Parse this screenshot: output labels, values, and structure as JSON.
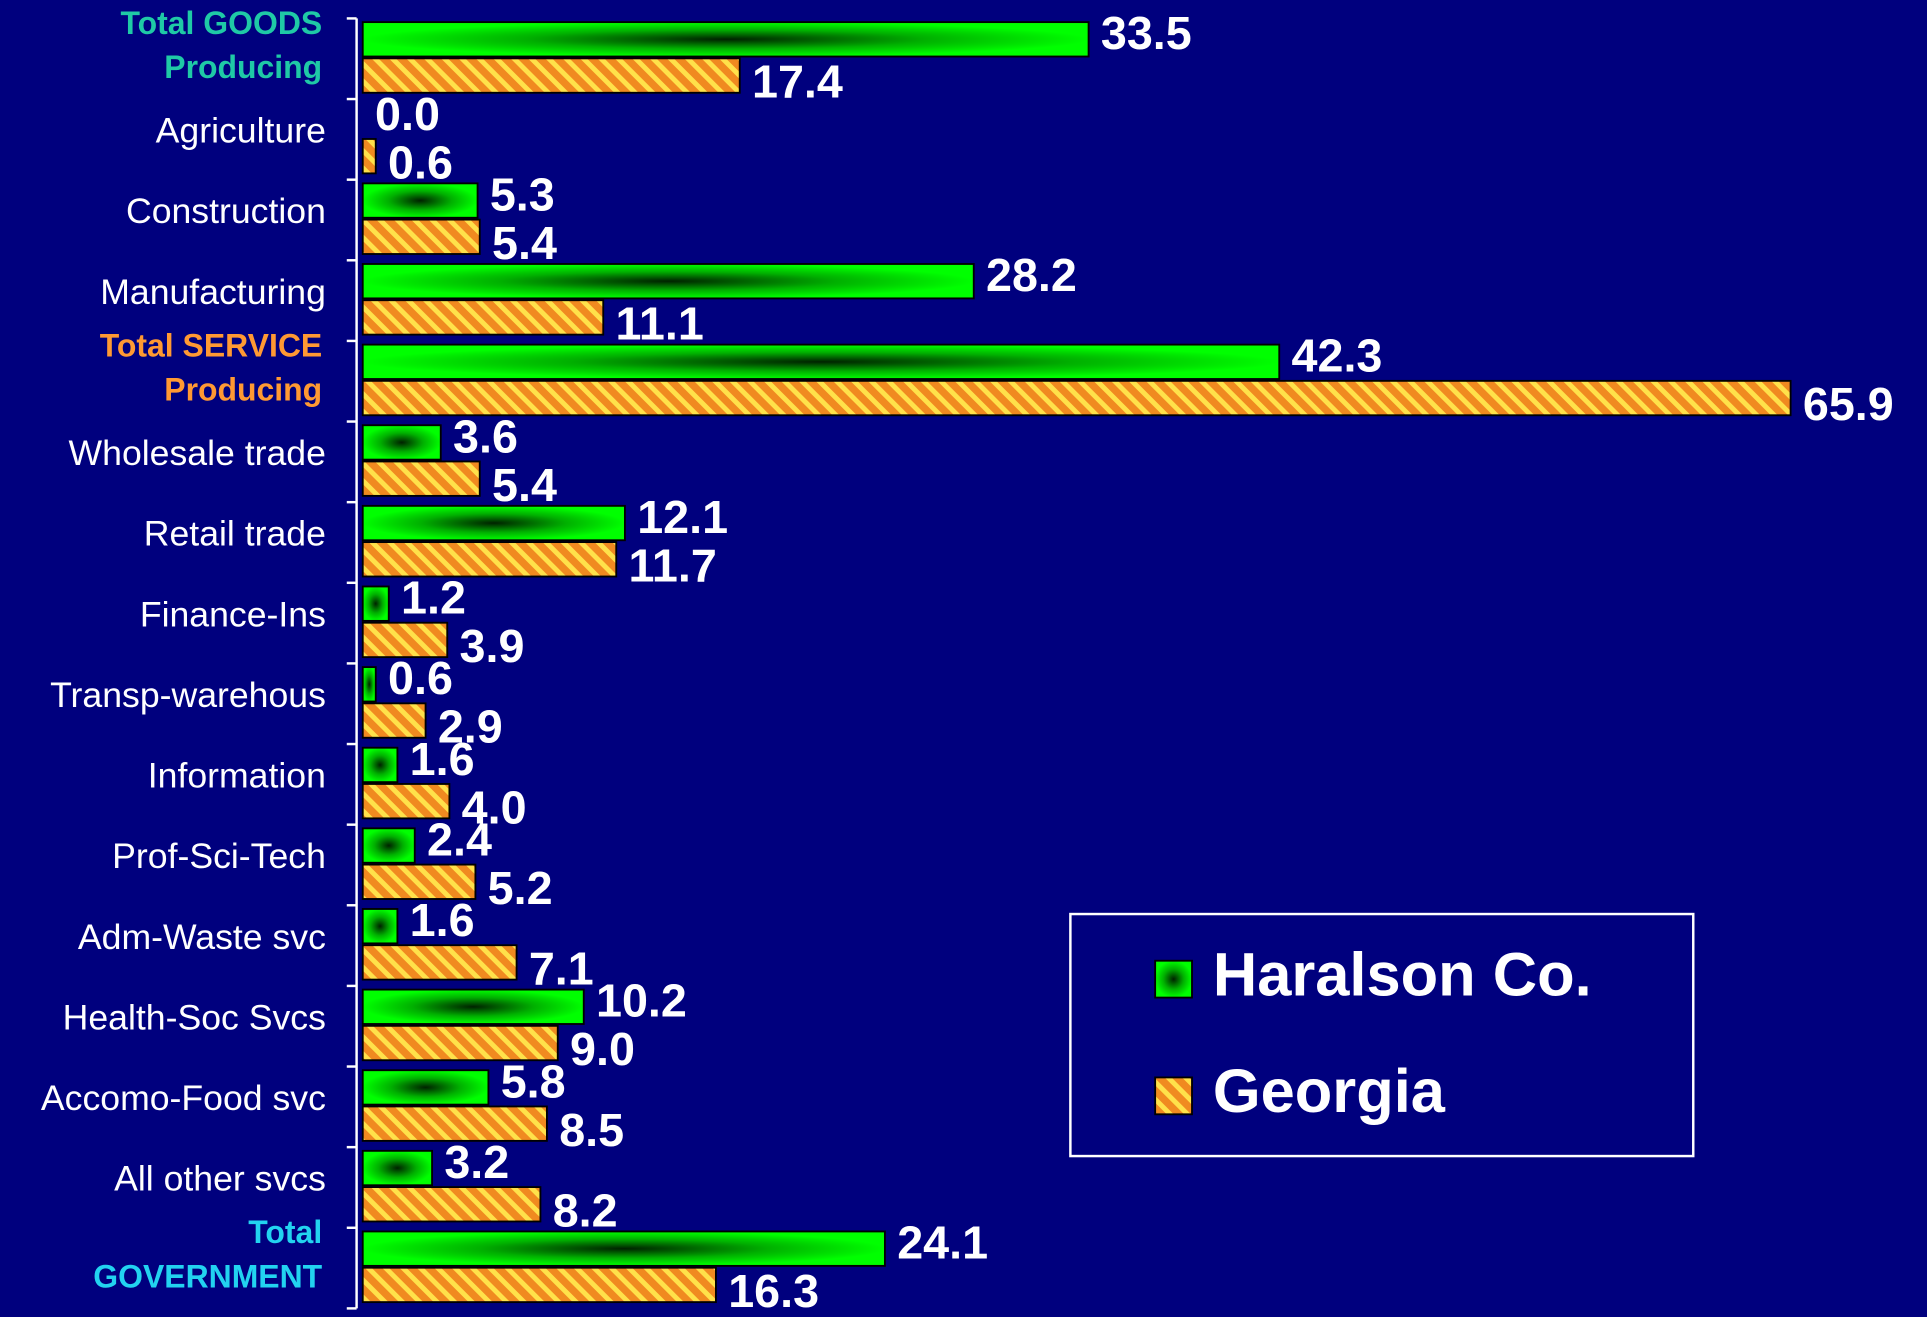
{
  "chart_data": {
    "type": "bar",
    "orientation": "horizontal",
    "categories": [
      "Total GOODS Producing",
      "Agriculture",
      "Construction",
      "Manufacturing",
      "Total SERVICE Producing",
      "Wholesale trade",
      "Retail trade",
      "Finance-Ins",
      "Transp-warehous",
      "Information",
      "Prof-Sci-Tech",
      "Adm-Waste svc",
      "Health-Soc Svcs",
      "Accomo-Food svc",
      "All other svcs",
      "Total GOVERNMENT"
    ],
    "category_colors": [
      "#1fc9a6",
      "#ffffff",
      "#ffffff",
      "#ffffff",
      "#ff9933",
      "#ffffff",
      "#ffffff",
      "#ffffff",
      "#ffffff",
      "#ffffff",
      "#ffffff",
      "#ffffff",
      "#ffffff",
      "#ffffff",
      "#ffffff",
      "#22d3f0"
    ],
    "series": [
      {
        "name": "Haralson Co.",
        "color": "#00ff00",
        "values": [
          33.5,
          0,
          5.3,
          28.2,
          42.3,
          3.6,
          12.1,
          1.2,
          0.6,
          1.6,
          2.4,
          1.6,
          10.2,
          5.8,
          3.2,
          24.1
        ],
        "value_labels": [
          "33.5",
          "0.0",
          "5.3",
          "28.2",
          "42.3",
          "3.6",
          "12.1",
          "1.2",
          "0.6",
          "1.6",
          "2.4",
          "1.6",
          "10.2",
          "5.8",
          "3.2",
          "24.1"
        ]
      },
      {
        "name": "Georgia",
        "color": "#f5a020",
        "values": [
          17.4,
          0.6,
          5.4,
          11.1,
          65.9,
          5.4,
          11.7,
          3.9,
          2.9,
          4.0,
          5.2,
          7.1,
          9.0,
          8.5,
          8.2,
          16.3
        ],
        "value_labels": [
          "17.4",
          "0.6",
          "5.4",
          "11.1",
          "65.9",
          "5.4",
          "11.7",
          "3.9",
          "2.9",
          "4.0",
          "5.2",
          "7.1",
          "9.0",
          "8.5",
          "8.2",
          "16.3"
        ]
      }
    ],
    "xlim": [
      0,
      66
    ],
    "legend": "lower-right"
  }
}
